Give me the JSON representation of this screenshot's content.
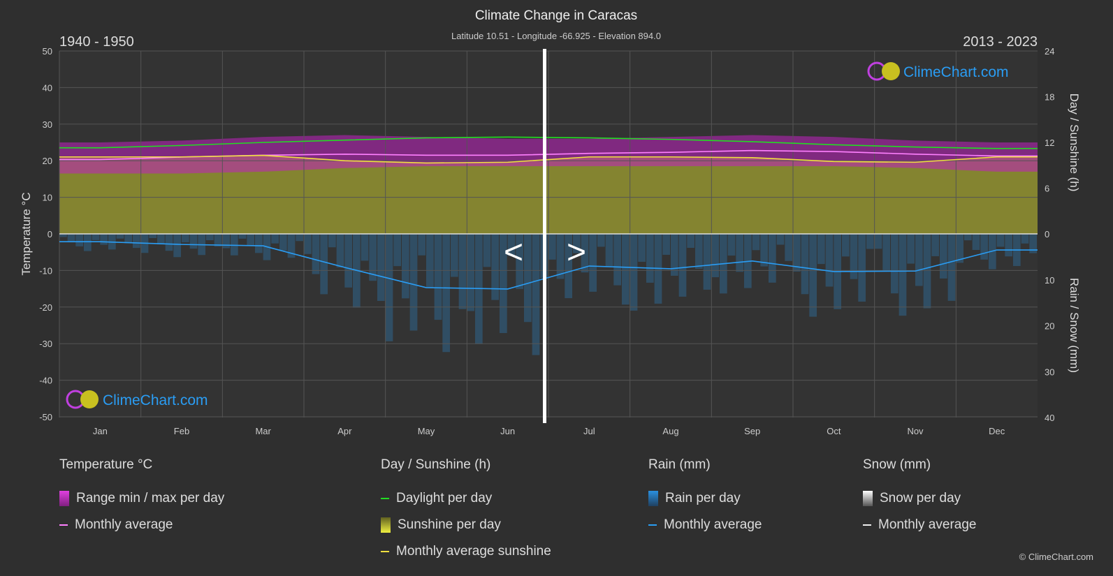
{
  "chart_data": {
    "type": "line",
    "title": "Climate Change in Caracas",
    "subtitle": "Latitude 10.51 - Longitude -66.925 - Elevation 894.0",
    "period_left": "1940 - 1950",
    "period_right": "2013 - 2023",
    "categories": [
      "Jan",
      "Feb",
      "Mar",
      "Apr",
      "May",
      "Jun",
      "Jul",
      "Aug",
      "Sep",
      "Oct",
      "Nov",
      "Dec"
    ],
    "ylabel_left": "Temperature °C",
    "ylabel_right_top": "Day / Sunshine (h)",
    "ylabel_right_bottom": "Rain / Snow (mm)",
    "ylim_left": [
      -50,
      50
    ],
    "yticks_left": [
      50,
      40,
      30,
      20,
      10,
      0,
      -10,
      -20,
      -30,
      -40,
      -50
    ],
    "yticks_right_top": [
      24,
      18,
      12,
      6,
      0
    ],
    "yticks_right_bottom": [
      0,
      10,
      20,
      30,
      40
    ],
    "grid": true,
    "series": {
      "temp_avg": [
        20.3,
        21,
        21.5,
        21.8,
        21.5,
        21.5,
        22,
        22.3,
        22.8,
        22.5,
        21.8,
        21.3
      ],
      "temp_max": [
        25,
        25.5,
        26.5,
        27,
        26.5,
        26,
        26,
        26.5,
        27,
        26.5,
        25.5,
        25
      ],
      "temp_min": [
        16.5,
        16.5,
        17,
        18,
        18.5,
        18.5,
        18.5,
        18.5,
        18.5,
        18.5,
        18,
        17
      ],
      "daylight": [
        11.3,
        11.6,
        12.0,
        12.3,
        12.6,
        12.7,
        12.6,
        12.4,
        12.1,
        11.7,
        11.4,
        11.2
      ],
      "sunshine": [
        10.1,
        10.1,
        10.3,
        9.6,
        9.3,
        9.4,
        10.1,
        10.1,
        10.0,
        9.5,
        9.4,
        10.1
      ],
      "rain_avg": [
        1.7,
        2.3,
        2.6,
        7.3,
        11.7,
        12.0,
        7.0,
        7.6,
        5.9,
        8.2,
        8.1,
        3.5
      ]
    },
    "colors": {
      "temp_range": "#c020c0",
      "temp_avg": "#ff80ff",
      "daylight": "#22dd22",
      "sunshine_fill": "#a0a030",
      "sunshine_avg": "#f0e040",
      "rain": "#2a80c0",
      "rain_avg": "#2a9df4"
    },
    "nav": {
      "prev": "<",
      "next": ">"
    }
  },
  "logo": "ClimeChart.com",
  "legend": {
    "temp": {
      "title": "Temperature °C",
      "range": "Range min / max per day",
      "avg": "Monthly average"
    },
    "sun": {
      "title": "Day / Sunshine (h)",
      "daylight": "Daylight per day",
      "sunshine": "Sunshine per day",
      "avg": "Monthly average sunshine"
    },
    "rain": {
      "title": "Rain (mm)",
      "per_day": "Rain per day",
      "avg": "Monthly average"
    },
    "snow": {
      "title": "Snow (mm)",
      "per_day": "Snow per day",
      "avg": "Monthly average"
    }
  },
  "copyright": "© ClimeChart.com"
}
